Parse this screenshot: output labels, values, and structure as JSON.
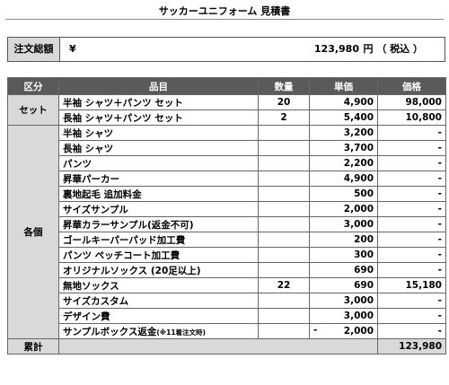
{
  "title": "サッカーユニフォーム 見積書",
  "order_total": {
    "label": "注文総額",
    "currency": "¥",
    "amount": "123,980",
    "unit": "円 （ 税込 ）"
  },
  "table": {
    "headers": [
      "区分",
      "品目",
      "数量",
      "単価",
      "価格"
    ],
    "set": {
      "category": "セット",
      "rows": [
        {
          "item": "半袖 シャツ＋パンツ セット",
          "qty": "20",
          "unit_price": "4,900",
          "price": "98,000"
        },
        {
          "item": "長袖 シャツ＋パンツ セット",
          "qty": "2",
          "unit_price": "5,400",
          "price": "10,800"
        }
      ]
    },
    "individual": {
      "category": "各個",
      "rows": [
        {
          "item": "半袖 シャツ",
          "qty": "",
          "unit_price": "3,200",
          "price": "-"
        },
        {
          "item": "長袖 シャツ",
          "qty": "",
          "unit_price": "3,700",
          "price": "-"
        },
        {
          "item": "パンツ",
          "qty": "",
          "unit_price": "2,200",
          "price": "-"
        },
        {
          "item": "昇華パーカー",
          "qty": "",
          "unit_price": "4,900",
          "price": "-"
        },
        {
          "item": "裏地起毛 追加料金",
          "qty": "",
          "unit_price": "500",
          "price": "-"
        },
        {
          "item": "サイズサンプル",
          "qty": "",
          "unit_price": "2,000",
          "price": "-"
        },
        {
          "item": "昇華カラーサンプル(返金不可)",
          "qty": "",
          "unit_price": "3,000",
          "price": "-"
        },
        {
          "item": "ゴールキーパーパッド加工費",
          "qty": "",
          "unit_price": "200",
          "price": "-"
        },
        {
          "item": "パンツ ペッチコート加工費",
          "qty": "",
          "unit_price": "300",
          "price": "-"
        },
        {
          "item": "オリジナルソックス (20足以上)",
          "qty": "",
          "unit_price": "690",
          "price": "-"
        },
        {
          "item": "無地ソックス",
          "qty": "22",
          "unit_price": "690",
          "price": "15,180"
        },
        {
          "item": "サイズカスタム",
          "qty": "",
          "unit_price": "3,000",
          "price": "-"
        },
        {
          "item": "デザイン費",
          "qty": "",
          "unit_price": "3,000",
          "price": "-"
        }
      ],
      "last_row": {
        "item": "サンプルボックス返金",
        "item_note": "(※11着注文時)",
        "qty": "",
        "minus": "-",
        "unit_price": "2,000",
        "price": "-"
      }
    },
    "sum": {
      "label": "累計",
      "price": "123,980"
    }
  }
}
